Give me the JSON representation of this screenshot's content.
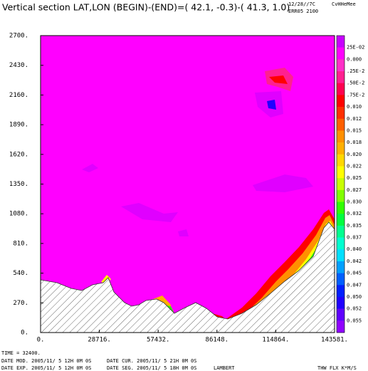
{
  "chart_data": {
    "type": "contour",
    "title": "Vertical section LAT,LON (BEGIN)-(END)=( 42.1, -0.3)-( 41.3,  1.0)",
    "run_info": [
      "12/28//7C",
      "CvHHeMee",
      "ERR05 2100"
    ],
    "time_label": "TIME =   32400.",
    "date_lines": [
      "DATE MOD. 2005/11/ 5  12H 0M 0S",
      "DATE CUR. 2005/11/ 5  21H 0M 0S",
      "DATE EXP. 2005/11/ 5  12H 0M 0S",
      "DATE SEG. 2005/11/ 5  18H 0M 0S"
    ],
    "projection": "LAMBERT",
    "variable": "THW FLX K*M/S",
    "xlim": [
      0,
      143581
    ],
    "ylim": [
      0,
      2700
    ],
    "xticks": [
      {
        "value": 0,
        "label": "0."
      },
      {
        "value": 28716,
        "label": "28716."
      },
      {
        "value": 57432,
        "label": "57432."
      },
      {
        "value": 86148,
        "label": "86148."
      },
      {
        "value": 114864,
        "label": "114864."
      },
      {
        "value": 143581,
        "label": "143581."
      }
    ],
    "yticks": [
      {
        "value": 0,
        "label": "0."
      },
      {
        "value": 270,
        "label": "270."
      },
      {
        "value": 540,
        "label": "540."
      },
      {
        "value": 810,
        "label": "810."
      },
      {
        "value": 1080,
        "label": "1080."
      },
      {
        "value": 1350,
        "label": "1350."
      },
      {
        "value": 1620,
        "label": "1620."
      },
      {
        "value": 1890,
        "label": "1890."
      },
      {
        "value": 2160,
        "label": "2160."
      },
      {
        "value": 2430,
        "label": "2430."
      },
      {
        "value": 2700,
        "label": "2700."
      }
    ],
    "colorbar": {
      "labels": [
        "25E-02",
        "0.000",
        ".25E-2",
        ".50E-2",
        ".75E-2",
        "0.010",
        "0.012",
        "0.015",
        "0.018",
        "0.020",
        "0.022",
        "0.025",
        "0.027",
        "0.030",
        "0.032",
        "0.035",
        "0.037",
        "0.040",
        "0.042",
        "0.045",
        "0.047",
        "0.050",
        "0.052",
        "0.055"
      ],
      "colors": [
        "#c800ff",
        "#ff00ff",
        "#ff30c8",
        "#ff2090",
        "#ff0050",
        "#ff0000",
        "#ff3000",
        "#ff6000",
        "#ff9000",
        "#ffb000",
        "#ffd800",
        "#ffff00",
        "#c8ff00",
        "#80ff00",
        "#30ff00",
        "#00ff40",
        "#00ff90",
        "#00ffd0",
        "#00e0ff",
        "#00a0ff",
        "#0060ff",
        "#0020ff",
        "#2000ff",
        "#6000ff",
        "#9000ff"
      ]
    }
  }
}
